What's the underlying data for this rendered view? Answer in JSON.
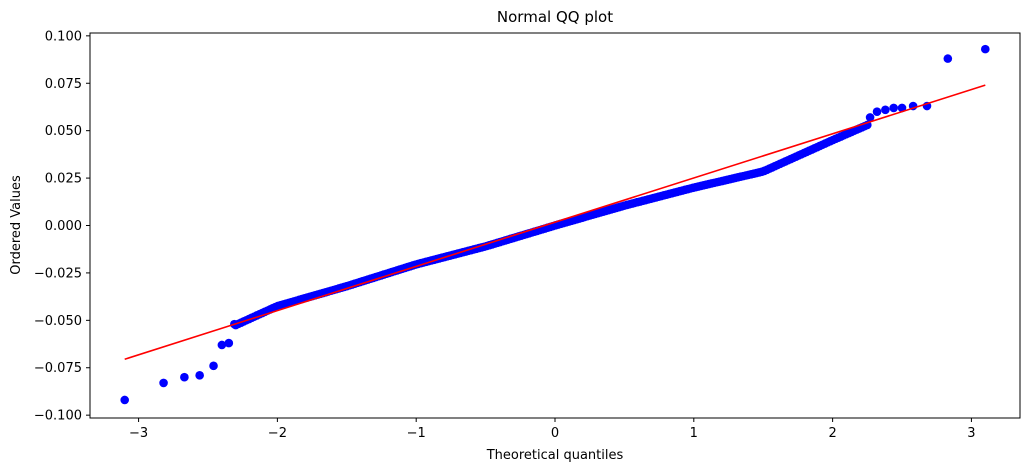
{
  "chart_data": {
    "type": "scatter",
    "title": "Normal QQ plot",
    "xlabel": "Theoretical quantiles",
    "ylabel": "Ordered Values",
    "xlim": [
      -3.35,
      3.35
    ],
    "ylim": [
      -0.1015,
      0.1015
    ],
    "xticks": [
      -3,
      -2,
      -1,
      0,
      1,
      2,
      3
    ],
    "xtick_labels": [
      "−3",
      "−2",
      "−1",
      "0",
      "1",
      "2",
      "3"
    ],
    "yticks": [
      -0.1,
      -0.075,
      -0.05,
      -0.025,
      0.0,
      0.025,
      0.05,
      0.075,
      0.1
    ],
    "ytick_labels": [
      "−0.100",
      "−0.075",
      "−0.050",
      "−0.025",
      "0.000",
      "0.025",
      "0.050",
      "0.075",
      "0.100"
    ],
    "grid": false,
    "legend": "none",
    "series": [
      {
        "kind": "points",
        "color": "#0000ff",
        "x": [
          -3.1,
          -2.82,
          -2.67,
          -2.56,
          -2.46,
          -2.4,
          -2.35,
          -2.31
        ],
        "y": [
          -0.092,
          -0.083,
          -0.08,
          -0.079,
          -0.074,
          -0.063,
          -0.062,
          -0.052
        ]
      },
      {
        "kind": "dense_points",
        "color": "#0000ff",
        "x_range": [
          -2.3,
          2.25
        ],
        "count": 240,
        "trend": [
          [
            -2.3,
            -0.0525
          ],
          [
            -2.0,
            -0.0425
          ],
          [
            -1.5,
            -0.032
          ],
          [
            -1.0,
            -0.0205
          ],
          [
            -0.5,
            -0.011
          ],
          [
            0.0,
            0.0
          ],
          [
            0.5,
            0.0105
          ],
          [
            1.0,
            0.02
          ],
          [
            1.5,
            0.0285
          ],
          [
            2.0,
            0.045
          ],
          [
            2.25,
            0.053
          ]
        ]
      },
      {
        "kind": "points",
        "color": "#0000ff",
        "x": [
          2.27,
          2.32,
          2.38,
          2.44,
          2.5,
          2.58,
          2.68,
          2.83,
          3.1
        ],
        "y": [
          0.057,
          0.06,
          0.061,
          0.062,
          0.062,
          0.063,
          0.063,
          0.088,
          0.093
        ]
      },
      {
        "kind": "line",
        "color": "#ff0000",
        "x": [
          -3.1,
          3.1
        ],
        "y": [
          -0.0705,
          0.074
        ]
      }
    ]
  }
}
